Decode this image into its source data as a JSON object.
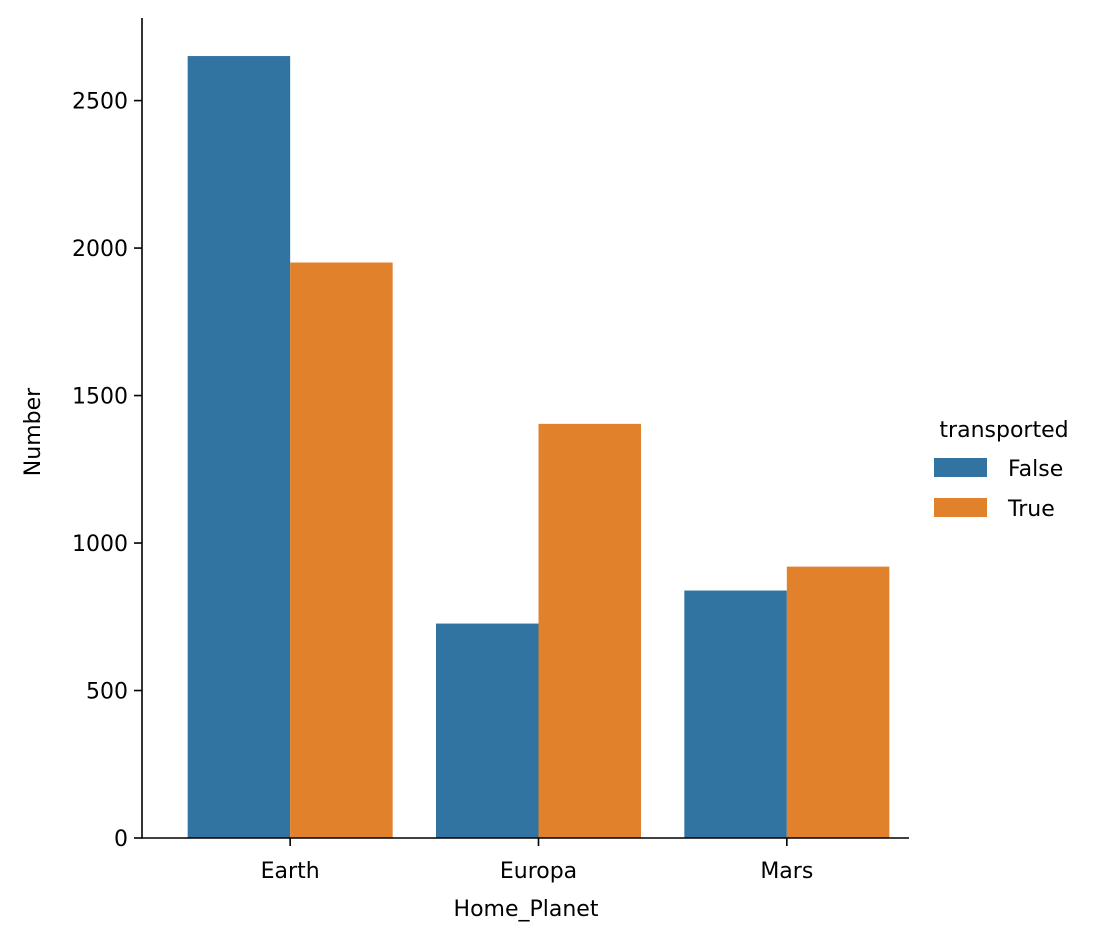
{
  "chart_data": {
    "type": "bar",
    "title": "",
    "xlabel": "Home_Planet",
    "ylabel": "Number",
    "categories": [
      "Earth",
      "Europa",
      "Mars"
    ],
    "series": [
      {
        "name": "False",
        "values": [
          2651,
          727,
          839
        ]
      },
      {
        "name": "True",
        "values": [
          1951,
          1404,
          920
        ]
      }
    ],
    "ylim": [
      0,
      2780
    ],
    "yticks": [
      0,
      500,
      1000,
      1500,
      2000,
      2500
    ],
    "grid": false,
    "legend": {
      "title": "transported",
      "placement": "right"
    }
  },
  "colors": {
    "False": "#3274a1",
    "True": "#e1812c",
    "axis": "#000000"
  }
}
